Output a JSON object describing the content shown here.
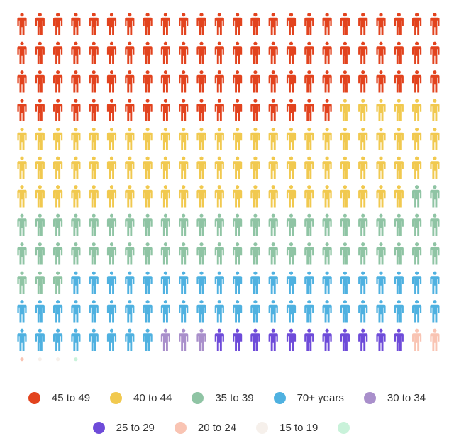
{
  "chart_data": {
    "type": "waffle",
    "units_per_row": 24,
    "series": [
      {
        "name": "45 to 49",
        "value": 90,
        "color": "#E2431E"
      },
      {
        "name": "40 to 44",
        "value": 76,
        "color": "#F1C94F"
      },
      {
        "name": "35 to 39",
        "value": 53,
        "color": "#8FC4A4"
      },
      {
        "name": "70+ years",
        "value": 53,
        "color": "#4FB1E0"
      },
      {
        "name": "30 to 34",
        "value": 3,
        "color": "#A98FCB"
      },
      {
        "name": "25 to 29",
        "value": 11,
        "color": "#6E4BD9"
      },
      {
        "name": "20 to 24",
        "value": 3,
        "color": "#F9C4B3"
      },
      {
        "name": "15 to 19",
        "value": 2,
        "color": "#F6F0EB"
      },
      {
        "name": "",
        "value": 1,
        "color": "#C9F2DA"
      }
    ]
  },
  "legend": {
    "row1": [
      {
        "label": "45 to 49",
        "color": "#E2431E"
      },
      {
        "label": "40 to 44",
        "color": "#F1C94F"
      },
      {
        "label": "35 to 39",
        "color": "#8FC4A4"
      },
      {
        "label": "70+ years",
        "color": "#4FB1E0"
      },
      {
        "label": "30 to 34",
        "color": "#A98FCB"
      }
    ],
    "row2": [
      {
        "label": "25 to 29",
        "color": "#6E4BD9"
      },
      {
        "label": "20 to 24",
        "color": "#F9C4B3"
      },
      {
        "label": "15 to 19",
        "color": "#F6F0EB"
      },
      {
        "label": "",
        "color": "#C9F2DA"
      }
    ]
  }
}
